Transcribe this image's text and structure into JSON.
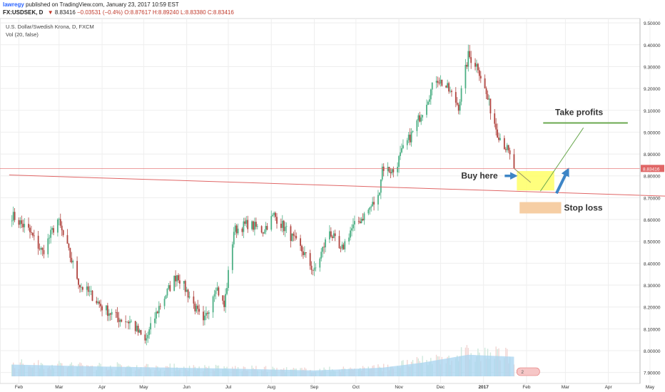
{
  "header": {
    "author": "lawregy",
    "published_text": "published on TradingView.com, January 23, 2017 10:59 EST",
    "symbol": "FX:USDSEK, D",
    "last": "8.83416",
    "change": "−0.03531 (−0.4%)",
    "open": "O:8.87617",
    "high": "H:8.89240",
    "low": "L:8.83380",
    "close": "C:8.83416"
  },
  "legend": {
    "instrument": "U.S. Dollar/Swedish Krona, D, FXCM",
    "volume": "Vol (20, false)"
  },
  "colors": {
    "up": "#4caf84",
    "down": "#b0443f",
    "trendline": "#e06666",
    "buy_zone": "#ffff66",
    "stop_zone": "#f5c99a",
    "take_profit_line": "#6aa84f",
    "arrow": "#3d85c6",
    "price_tag": "#e06666",
    "volume_ma": "#a8d4f0"
  },
  "annotations": {
    "buy_label": "Buy here",
    "stop_label": "Stop loss",
    "take_profit_label": "Take profits",
    "scroll_badge": "2"
  },
  "chart_data": {
    "type": "candlestick",
    "title": "U.S. Dollar/Swedish Krona, D, FXCM",
    "y_axis_position": "right",
    "ylim": [
      7.85,
      9.52
    ],
    "y_ticks": [
      "9.50000",
      "9.40000",
      "9.30000",
      "9.20000",
      "9.10000",
      "9.00000",
      "8.90000",
      "8.80000",
      "8.70000",
      "8.60000",
      "8.50000",
      "8.40000",
      "8.30000",
      "8.20000",
      "8.10000",
      "8.00000",
      "7.90000"
    ],
    "last_price_label": "8.83416",
    "x_ticks": [
      "Feb",
      "Mar",
      "Apr",
      "May",
      "Jun",
      "Jul",
      "Aug",
      "Sep",
      "Oct",
      "Nov",
      "Dec",
      "2017",
      "Feb",
      "Mar",
      "Apr",
      "May"
    ],
    "grid": true,
    "series": [
      {
        "name": "USDSEK",
        "anchors": [
          [
            "2016-01-27",
            8.62
          ],
          [
            "2016-02-08",
            8.55
          ],
          [
            "2016-02-18",
            8.45
          ],
          [
            "2016-02-29",
            8.6
          ],
          [
            "2016-03-08",
            8.45
          ],
          [
            "2016-03-16",
            8.3
          ],
          [
            "2016-03-25",
            8.25
          ],
          [
            "2016-04-01",
            8.2
          ],
          [
            "2016-04-12",
            8.15
          ],
          [
            "2016-04-22",
            8.13
          ],
          [
            "2016-05-02",
            8.04
          ],
          [
            "2016-05-12",
            8.2
          ],
          [
            "2016-05-25",
            8.35
          ],
          [
            "2016-06-03",
            8.25
          ],
          [
            "2016-06-13",
            8.12
          ],
          [
            "2016-06-22",
            8.3
          ],
          [
            "2016-06-28",
            8.2
          ],
          [
            "2016-07-05",
            8.55
          ],
          [
            "2016-07-15",
            8.58
          ],
          [
            "2016-07-26",
            8.55
          ],
          [
            "2016-08-03",
            8.62
          ],
          [
            "2016-08-12",
            8.55
          ],
          [
            "2016-08-24",
            8.45
          ],
          [
            "2016-09-01",
            8.36
          ],
          [
            "2016-09-12",
            8.55
          ],
          [
            "2016-09-20",
            8.45
          ],
          [
            "2016-09-27",
            8.55
          ],
          [
            "2016-10-07",
            8.62
          ],
          [
            "2016-10-17",
            8.7
          ],
          [
            "2016-10-20",
            8.84
          ],
          [
            "2016-10-28",
            8.82
          ],
          [
            "2016-11-04",
            8.92
          ],
          [
            "2016-11-11",
            9.0
          ],
          [
            "2016-11-18",
            9.1
          ],
          [
            "2016-11-28",
            9.25
          ],
          [
            "2016-12-06",
            9.2
          ],
          [
            "2016-12-14",
            9.12
          ],
          [
            "2016-12-21",
            9.35
          ],
          [
            "2016-12-28",
            9.3
          ],
          [
            "2017-01-04",
            9.15
          ],
          [
            "2017-01-11",
            9.0
          ],
          [
            "2017-01-18",
            8.92
          ],
          [
            "2017-01-23",
            8.834
          ]
        ]
      },
      {
        "name": "Vol (20, false)",
        "levels": [
          [
            "2016-01-27",
            0.3
          ],
          [
            "2016-04-01",
            0.25
          ],
          [
            "2016-06-28",
            0.2
          ],
          [
            "2016-09-01",
            0.15
          ],
          [
            "2016-10-20",
            0.22
          ],
          [
            "2016-11-18",
            0.35
          ],
          [
            "2016-12-21",
            0.55
          ],
          [
            "2017-01-23",
            0.5
          ]
        ]
      }
    ],
    "drawings": {
      "trendline": {
        "from": [
          "2016-01-25",
          8.804
        ],
        "to": [
          "2017-05-24",
          8.705
        ]
      },
      "buy_zone": {
        "x": [
          "2017-01-25",
          "2017-02-21"
        ],
        "y": [
          8.733,
          8.822
        ]
      },
      "stop_zone": {
        "x": [
          "2017-01-27",
          "2017-02-26"
        ],
        "y": [
          8.628,
          8.68
        ]
      },
      "take_profit_line": {
        "x": [
          "2017-02-13",
          "2017-04-15"
        ],
        "y": 9.042
      },
      "take_profit_path": {
        "from": [
          "2017-02-11",
          8.73
        ],
        "to": [
          "2017-03-14",
          9.02
        ]
      },
      "entry_path": {
        "from": [
          "2017-01-23",
          8.834
        ],
        "to": [
          "2017-02-04",
          8.77
        ]
      }
    }
  }
}
